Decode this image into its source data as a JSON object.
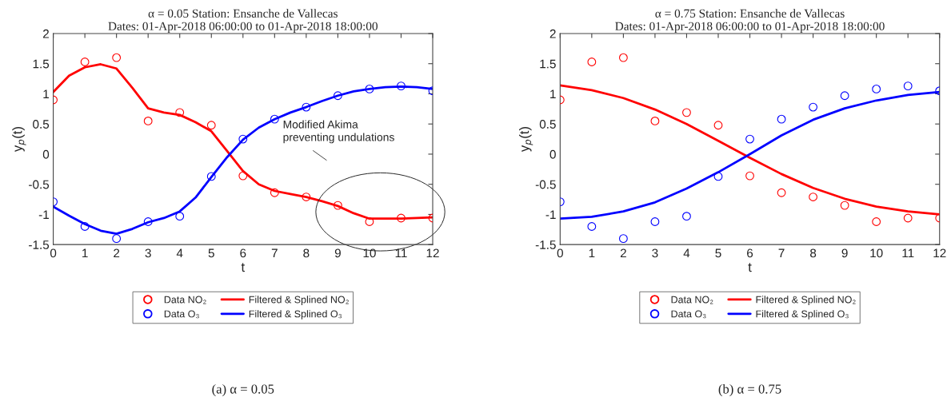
{
  "chart_data": [
    {
      "type": "line",
      "title": "α = 0.05 Station: Ensanche de Vallecas\nDates: 01-Apr-2018 06:00:00 to 01-Apr-2018 18:00:00",
      "xlabel": "t",
      "ylabel": "y$_{p}$(t)",
      "xlim": [
        0,
        12
      ],
      "xticks": [
        0,
        1,
        2,
        3,
        4,
        5,
        6,
        7,
        8,
        9,
        10,
        11,
        12
      ],
      "ylim": [
        -1.5,
        2
      ],
      "yticks": [
        -1.5,
        -1,
        -0.5,
        0,
        0.5,
        1,
        1.5,
        2
      ],
      "grid": false,
      "legend": "bottom",
      "series": [
        {
          "name": "Data NO₂",
          "type": "scatter",
          "marker": "circle",
          "color": "#ff0000",
          "x": [
            0,
            1,
            2,
            3,
            4,
            5,
            6,
            7,
            8,
            9,
            10,
            11,
            12
          ],
          "values": [
            0.9,
            1.53,
            1.6,
            0.55,
            0.69,
            0.48,
            -0.36,
            -0.64,
            -0.71,
            -0.85,
            -1.12,
            -1.06,
            -1.06
          ]
        },
        {
          "name": "Data O₃",
          "type": "scatter",
          "marker": "circle",
          "color": "#0000ff",
          "x": [
            0,
            1,
            2,
            3,
            4,
            5,
            6,
            7,
            8,
            9,
            10,
            11,
            12
          ],
          "values": [
            -0.79,
            -1.2,
            -1.4,
            -1.12,
            -1.03,
            -0.37,
            0.25,
            0.58,
            0.78,
            0.97,
            1.08,
            1.13,
            1.05
          ]
        },
        {
          "name": "Filtered & Splined NO₂",
          "color": "#ff0000",
          "x": [
            0,
            0.5,
            1,
            1.5,
            2,
            2.5,
            3,
            3.5,
            4,
            4.5,
            5,
            5.5,
            6,
            6.5,
            7,
            7.5,
            8,
            8.5,
            9,
            9.5,
            10,
            10.5,
            11,
            11.5,
            12
          ],
          "values": [
            1.03,
            1.3,
            1.44,
            1.49,
            1.42,
            1.1,
            0.76,
            0.69,
            0.65,
            0.53,
            0.38,
            0.05,
            -0.28,
            -0.5,
            -0.61,
            -0.66,
            -0.71,
            -0.78,
            -0.86,
            -0.98,
            -1.07,
            -1.07,
            -1.07,
            -1.06,
            -1.05
          ]
        },
        {
          "name": "Filtered & Splined O₃",
          "color": "#0000ff",
          "x": [
            0,
            0.5,
            1,
            1.5,
            2,
            2.5,
            3,
            3.5,
            4,
            4.5,
            5,
            5.5,
            6,
            6.5,
            7,
            7.5,
            8,
            8.5,
            9,
            9.5,
            10,
            10.5,
            11,
            11.5,
            12
          ],
          "values": [
            -0.87,
            -1.02,
            -1.16,
            -1.27,
            -1.32,
            -1.24,
            -1.13,
            -1.06,
            -0.95,
            -0.72,
            -0.38,
            -0.05,
            0.24,
            0.44,
            0.58,
            0.69,
            0.78,
            0.88,
            0.97,
            1.04,
            1.08,
            1.11,
            1.12,
            1.11,
            1.08
          ]
        }
      ],
      "annotations": [
        "Modified Akima\npreventing undulations",
        "(a) α = 0.05"
      ]
    },
    {
      "type": "line",
      "title": "α = 0.75 Station: Ensanche de Vallecas\nDates: 01-Apr-2018 06:00:00 to 01-Apr-2018 18:00:00",
      "xlabel": "t",
      "ylabel": "y$_{p}$(t)",
      "xlim": [
        0,
        12
      ],
      "xticks": [
        0,
        1,
        2,
        3,
        4,
        5,
        6,
        7,
        8,
        9,
        10,
        11,
        12
      ],
      "ylim": [
        -1.5,
        2
      ],
      "yticks": [
        -1.5,
        -1,
        -0.5,
        0,
        0.5,
        1,
        1.5,
        2
      ],
      "grid": false,
      "legend": "bottom",
      "series": [
        {
          "name": "Data NO₂",
          "type": "scatter",
          "marker": "circle",
          "color": "#ff0000",
          "x": [
            0,
            1,
            2,
            3,
            4,
            5,
            6,
            7,
            8,
            9,
            10,
            11,
            12
          ],
          "values": [
            0.9,
            1.53,
            1.6,
            0.55,
            0.69,
            0.48,
            -0.36,
            -0.64,
            -0.71,
            -0.85,
            -1.12,
            -1.06,
            -1.06
          ]
        },
        {
          "name": "Data O₃",
          "type": "scatter",
          "marker": "circle",
          "color": "#0000ff",
          "x": [
            0,
            1,
            2,
            3,
            4,
            5,
            6,
            7,
            8,
            9,
            10,
            11,
            12
          ],
          "values": [
            -0.79,
            -1.2,
            -1.4,
            -1.12,
            -1.03,
            -0.37,
            0.25,
            0.58,
            0.78,
            0.97,
            1.08,
            1.13,
            1.05
          ]
        },
        {
          "name": "Filtered & Splined NO₂",
          "color": "#ff0000",
          "x": [
            0,
            1,
            2,
            3,
            4,
            5,
            6,
            7,
            8,
            9,
            10,
            11,
            12
          ],
          "values": [
            1.14,
            1.06,
            0.93,
            0.74,
            0.5,
            0.22,
            -0.06,
            -0.33,
            -0.56,
            -0.74,
            -0.87,
            -0.95,
            -1.0
          ]
        },
        {
          "name": "Filtered & Splined O₃",
          "color": "#0000ff",
          "x": [
            0,
            1,
            2,
            3,
            4,
            5,
            6,
            7,
            8,
            9,
            10,
            11,
            12
          ],
          "values": [
            -1.07,
            -1.04,
            -0.95,
            -0.8,
            -0.57,
            -0.3,
            0.0,
            0.31,
            0.57,
            0.76,
            0.89,
            0.98,
            1.03
          ]
        }
      ],
      "annotations": [
        "(b) α = 0.75"
      ]
    }
  ]
}
